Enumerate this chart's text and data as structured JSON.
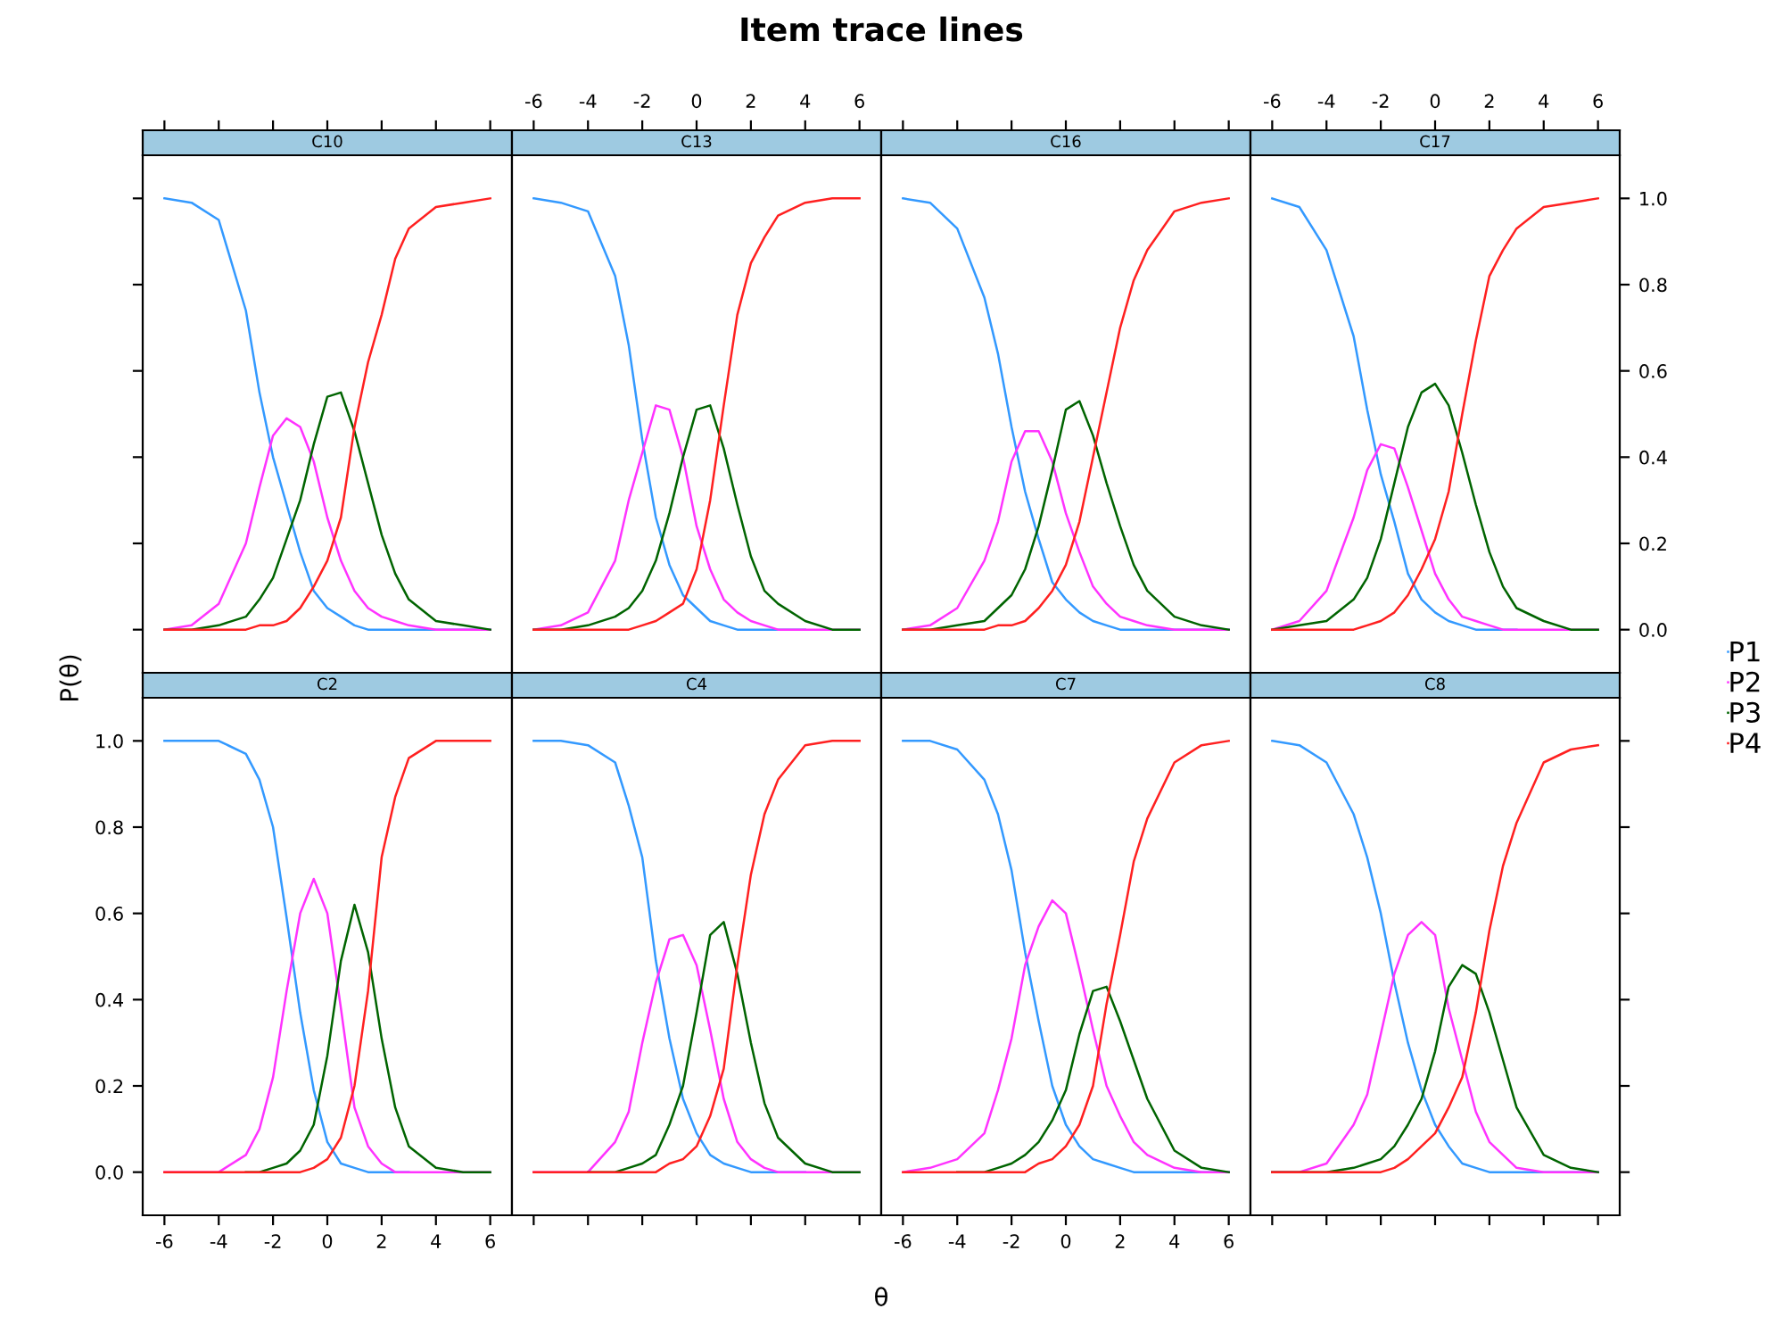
{
  "chart_data": [
    {
      "type": "line",
      "title": "C10",
      "annotations": [
        "Item trace lines",
        "θ",
        "P(θ)"
      ],
      "legend": "right",
      "tick_labels": false,
      "x": [
        -6,
        -5,
        -4,
        -3,
        -2.5,
        -2,
        -1.5,
        -1,
        -0.5,
        0,
        0.5,
        1,
        1.5,
        2,
        2.5,
        3,
        4,
        5,
        6
      ],
      "xlim": [
        -6.8,
        6.8
      ],
      "ylim": [
        -0.1,
        1.1
      ],
      "xticks": [
        -6,
        -4,
        -2,
        0,
        2,
        4,
        6
      ],
      "yticks": [
        0,
        0.2,
        0.4,
        0.6,
        0.8,
        1
      ],
      "series": [
        {
          "name": "P1",
          "color": "#3399ff",
          "values": [
            1.0,
            0.99,
            0.95,
            0.74,
            0.55,
            0.4,
            0.29,
            0.18,
            0.09,
            0.05,
            0.03,
            0.01,
            0,
            0,
            0,
            0,
            0,
            0,
            0
          ]
        },
        {
          "name": "P2",
          "color": "#ff33ff",
          "values": [
            0,
            0.01,
            0.06,
            0.2,
            0.33,
            0.45,
            0.49,
            0.47,
            0.39,
            0.26,
            0.16,
            0.09,
            0.05,
            0.03,
            0.02,
            0.01,
            0,
            0,
            0
          ]
        },
        {
          "name": "P3",
          "color": "#006400",
          "values": [
            0,
            0,
            0.01,
            0.03,
            0.07,
            0.12,
            0.21,
            0.3,
            0.43,
            0.54,
            0.55,
            0.46,
            0.34,
            0.22,
            0.13,
            0.07,
            0.02,
            0.01,
            0
          ]
        },
        {
          "name": "P4",
          "color": "#ff2020",
          "values": [
            0,
            0,
            0,
            0,
            0.01,
            0.01,
            0.02,
            0.05,
            0.1,
            0.16,
            0.26,
            0.47,
            0.62,
            0.73,
            0.86,
            0.93,
            0.98,
            0.99,
            1.0
          ]
        }
      ]
    },
    {
      "type": "line",
      "title": "C13",
      "tick_labels": "x",
      "x": [
        -6,
        -5,
        -4,
        -3,
        -2.5,
        -2,
        -1.5,
        -1,
        -0.5,
        0,
        0.5,
        1,
        1.5,
        2,
        2.5,
        3,
        4,
        5,
        6
      ],
      "xlim": [
        -6.8,
        6.8
      ],
      "ylim": [
        -0.1,
        1.1
      ],
      "xticks": [
        -6,
        -4,
        -2,
        0,
        2,
        4,
        6
      ],
      "yticks": [
        0,
        0.2,
        0.4,
        0.6,
        0.8,
        1
      ],
      "series": [
        {
          "color": "#3399ff",
          "values": [
            1.0,
            0.99,
            0.97,
            0.82,
            0.66,
            0.44,
            0.26,
            0.15,
            0.08,
            0.05,
            0.02,
            0.01,
            0,
            0,
            0,
            0,
            0,
            null,
            null
          ]
        },
        {
          "color": "#ff33ff",
          "values": [
            0,
            0.01,
            0.04,
            0.16,
            0.3,
            0.41,
            0.52,
            0.51,
            0.4,
            0.24,
            0.14,
            0.07,
            0.04,
            0.02,
            0.01,
            0,
            0,
            0,
            0
          ]
        },
        {
          "color": "#006400",
          "values": [
            0,
            0,
            0.01,
            0.03,
            0.05,
            0.09,
            0.16,
            0.27,
            0.4,
            0.51,
            0.52,
            0.42,
            0.29,
            0.17,
            0.09,
            0.06,
            0.02,
            0,
            0
          ]
        },
        {
          "color": "#ff2020",
          "values": [
            0,
            0,
            0,
            0,
            0,
            0.01,
            0.02,
            0.04,
            0.06,
            0.14,
            0.3,
            0.52,
            0.73,
            0.85,
            0.91,
            0.96,
            0.99,
            1.0,
            1.0
          ]
        }
      ]
    },
    {
      "type": "line",
      "title": "C16",
      "tick_labels": false,
      "x": [
        -6,
        -5,
        -4,
        -3,
        -2.5,
        -2,
        -1.5,
        -1,
        -0.5,
        0,
        0.5,
        1,
        1.5,
        2,
        2.5,
        3,
        4,
        5,
        6
      ],
      "xlim": [
        -6.8,
        6.8
      ],
      "ylim": [
        -0.1,
        1.1
      ],
      "xticks": [
        -6,
        -4,
        -2,
        0,
        2,
        4,
        6
      ],
      "yticks": [
        0,
        0.2,
        0.4,
        0.6,
        0.8,
        1
      ],
      "series": [
        {
          "color": "#3399ff",
          "values": [
            1.0,
            0.99,
            0.93,
            0.77,
            0.64,
            0.47,
            0.32,
            0.21,
            0.11,
            0.07,
            0.04,
            0.02,
            0.01,
            0,
            0,
            0,
            0,
            0,
            0
          ]
        },
        {
          "color": "#ff33ff",
          "values": [
            0,
            0.01,
            0.05,
            0.16,
            0.25,
            0.39,
            0.46,
            0.46,
            0.39,
            0.27,
            0.18,
            0.1,
            0.06,
            0.03,
            0.02,
            0.01,
            0,
            0,
            0
          ]
        },
        {
          "color": "#006400",
          "values": [
            0,
            0,
            0.01,
            0.02,
            0.05,
            0.08,
            0.14,
            0.24,
            0.37,
            0.51,
            0.53,
            0.45,
            0.34,
            0.24,
            0.15,
            0.09,
            0.03,
            0.01,
            0
          ]
        },
        {
          "color": "#ff2020",
          "values": [
            0,
            0,
            0,
            0,
            0.01,
            0.01,
            0.02,
            0.05,
            0.09,
            0.15,
            0.25,
            0.4,
            0.55,
            0.7,
            0.81,
            0.88,
            0.97,
            0.99,
            1.0
          ]
        }
      ]
    },
    {
      "type": "line",
      "title": "C17",
      "tick_labels": "xy",
      "x": [
        -6,
        -5,
        -4,
        -3,
        -2.5,
        -2,
        -1.5,
        -1,
        -0.5,
        0,
        0.5,
        1,
        1.5,
        2,
        2.5,
        3,
        4,
        5,
        6
      ],
      "xlim": [
        -6.8,
        6.8
      ],
      "ylim": [
        -0.1,
        1.1
      ],
      "xticks": [
        -6,
        -4,
        -2,
        0,
        2,
        4,
        6
      ],
      "yticks": [
        {
          "value": 0,
          "label": "0.0"
        },
        {
          "value": 0.2,
          "label": "0.2"
        },
        {
          "value": 0.4,
          "label": "0.4"
        },
        {
          "value": 0.6,
          "label": "0.6"
        },
        {
          "value": 0.8,
          "label": "0.8"
        },
        {
          "value": 1,
          "label": "1.0"
        }
      ],
      "series": [
        {
          "color": "#3399ff",
          "values": [
            1.0,
            0.98,
            0.88,
            0.68,
            0.51,
            0.36,
            0.25,
            0.13,
            0.07,
            0.04,
            0.02,
            0.01,
            0,
            0,
            0,
            0,
            null,
            null,
            null
          ]
        },
        {
          "color": "#ff33ff",
          "values": [
            0,
            0.02,
            0.09,
            0.26,
            0.37,
            0.43,
            0.42,
            0.33,
            0.23,
            0.13,
            0.07,
            0.03,
            0.02,
            0.01,
            0,
            0,
            0,
            0,
            0
          ]
        },
        {
          "color": "#006400",
          "values": [
            0,
            0.01,
            0.02,
            0.07,
            0.12,
            0.21,
            0.34,
            0.47,
            0.55,
            0.57,
            0.52,
            0.41,
            0.29,
            0.18,
            0.1,
            0.05,
            0.02,
            0,
            0
          ]
        },
        {
          "color": "#ff2020",
          "values": [
            0,
            0,
            0,
            0,
            0.01,
            0.02,
            0.04,
            0.08,
            0.14,
            0.21,
            0.32,
            0.5,
            0.67,
            0.82,
            0.88,
            0.93,
            0.98,
            0.99,
            1.0
          ]
        }
      ]
    },
    {
      "type": "line",
      "title": "C2",
      "tick_labels": "xy",
      "x": [
        -6,
        -5,
        -4,
        -3,
        -2.5,
        -2,
        -1.5,
        -1,
        -0.5,
        0,
        0.5,
        1,
        1.5,
        2,
        2.5,
        3,
        4,
        5,
        6
      ],
      "xlim": [
        -6.8,
        6.8
      ],
      "ylim": [
        -0.1,
        1.1
      ],
      "xticks": [
        -6,
        -4,
        -2,
        0,
        2,
        4,
        6
      ],
      "yticks": [
        {
          "value": 0,
          "label": "0.0"
        },
        {
          "value": 0.2,
          "label": "0.2"
        },
        {
          "value": 0.4,
          "label": "0.4"
        },
        {
          "value": 0.6,
          "label": "0.6"
        },
        {
          "value": 0.8,
          "label": "0.8"
        },
        {
          "value": 1,
          "label": "1.0"
        }
      ],
      "series": [
        {
          "color": "#3399ff",
          "values": [
            1.0,
            1.0,
            1.0,
            0.97,
            0.91,
            0.8,
            0.59,
            0.37,
            0.19,
            0.07,
            0.02,
            0.01,
            0,
            0,
            0,
            0,
            null,
            null,
            null
          ]
        },
        {
          "color": "#ff33ff",
          "values": [
            0,
            0,
            0,
            0.04,
            0.1,
            0.22,
            0.42,
            0.6,
            0.68,
            0.6,
            0.38,
            0.15,
            0.06,
            0.02,
            0,
            0,
            0,
            0,
            0
          ]
        },
        {
          "color": "#006400",
          "values": [
            null,
            null,
            null,
            0,
            0,
            0.01,
            0.02,
            0.05,
            0.11,
            0.27,
            0.49,
            0.62,
            0.51,
            0.31,
            0.15,
            0.06,
            0.01,
            0,
            0
          ]
        },
        {
          "color": "#ff2020",
          "values": [
            0,
            0,
            0,
            0,
            0,
            0,
            0,
            0,
            0.01,
            0.03,
            0.08,
            0.2,
            0.42,
            0.73,
            0.87,
            0.96,
            1.0,
            1.0,
            1.0
          ]
        }
      ]
    },
    {
      "type": "line",
      "title": "C4",
      "tick_labels": false,
      "x": [
        -6,
        -5,
        -4,
        -3,
        -2.5,
        -2,
        -1.5,
        -1,
        -0.5,
        0,
        0.5,
        1,
        1.5,
        2,
        2.5,
        3,
        4,
        5,
        6
      ],
      "xlim": [
        -6.8,
        6.8
      ],
      "ylim": [
        -0.1,
        1.1
      ],
      "xticks": [
        -6,
        -4,
        -2,
        0,
        2,
        4,
        6
      ],
      "yticks": [
        0,
        0.2,
        0.4,
        0.6,
        0.8,
        1
      ],
      "series": [
        {
          "color": "#3399ff",
          "values": [
            1.0,
            1.0,
            0.99,
            0.95,
            0.85,
            0.73,
            0.49,
            0.31,
            0.17,
            0.09,
            0.04,
            0.02,
            0.01,
            0,
            0,
            0,
            0,
            null,
            null
          ]
        },
        {
          "color": "#ff33ff",
          "values": [
            0,
            0,
            0,
            0.07,
            0.14,
            0.3,
            0.44,
            0.54,
            0.55,
            0.48,
            0.33,
            0.17,
            0.07,
            0.03,
            0.01,
            0,
            0,
            0,
            0
          ]
        },
        {
          "color": "#006400",
          "values": [
            null,
            null,
            0,
            0,
            0.01,
            0.02,
            0.04,
            0.11,
            0.2,
            0.37,
            0.55,
            0.58,
            0.46,
            0.3,
            0.16,
            0.08,
            0.02,
            0,
            0
          ]
        },
        {
          "color": "#ff2020",
          "values": [
            0,
            0,
            0,
            0,
            0,
            0,
            0,
            0.02,
            0.03,
            0.06,
            0.13,
            0.24,
            0.48,
            0.69,
            0.83,
            0.91,
            0.99,
            1.0,
            1.0
          ]
        }
      ]
    },
    {
      "type": "line",
      "title": "C7",
      "tick_labels": "x",
      "x": [
        -6,
        -5,
        -4,
        -3,
        -2.5,
        -2,
        -1.5,
        -1,
        -0.5,
        0,
        0.5,
        1,
        1.5,
        2,
        2.5,
        3,
        4,
        5,
        6
      ],
      "xlim": [
        -6.8,
        6.8
      ],
      "ylim": [
        -0.1,
        1.1
      ],
      "xticks": [
        -6,
        -4,
        -2,
        0,
        2,
        4,
        6
      ],
      "yticks": [
        0,
        0.2,
        0.4,
        0.6,
        0.8,
        1
      ],
      "series": [
        {
          "color": "#3399ff",
          "values": [
            1.0,
            1.0,
            0.98,
            0.91,
            0.83,
            0.7,
            0.51,
            0.35,
            0.2,
            0.11,
            0.06,
            0.03,
            0.02,
            0.01,
            0,
            0,
            0,
            0,
            0
          ]
        },
        {
          "color": "#ff33ff",
          "values": [
            0,
            0.01,
            0.03,
            0.09,
            0.19,
            0.31,
            0.48,
            0.57,
            0.63,
            0.6,
            0.47,
            0.33,
            0.2,
            0.13,
            0.07,
            0.04,
            0.01,
            0,
            0
          ]
        },
        {
          "color": "#006400",
          "values": [
            null,
            null,
            0,
            0,
            0.01,
            0.02,
            0.04,
            0.07,
            0.12,
            0.19,
            0.32,
            0.42,
            0.43,
            0.35,
            0.26,
            0.17,
            0.05,
            0.01,
            0
          ]
        },
        {
          "color": "#ff2020",
          "values": [
            0,
            0,
            0,
            0,
            0,
            0,
            0,
            0.02,
            0.03,
            0.06,
            0.11,
            0.2,
            0.39,
            0.55,
            0.72,
            0.82,
            0.95,
            0.99,
            1.0
          ]
        }
      ]
    },
    {
      "type": "line",
      "title": "C8",
      "tick_labels": false,
      "x": [
        -6,
        -5,
        -4,
        -3,
        -2.5,
        -2,
        -1.5,
        -1,
        -0.5,
        0,
        0.5,
        1,
        1.5,
        2,
        2.5,
        3,
        4,
        5,
        6
      ],
      "xlim": [
        -6.8,
        6.8
      ],
      "ylim": [
        -0.1,
        1.1
      ],
      "xticks": [
        -6,
        -4,
        -2,
        0,
        2,
        4,
        6
      ],
      "yticks": [
        0,
        0.2,
        0.4,
        0.6,
        0.8,
        1
      ],
      "series": [
        {
          "color": "#3399ff",
          "values": [
            1.0,
            0.99,
            0.95,
            0.83,
            0.73,
            0.6,
            0.44,
            0.3,
            0.19,
            0.11,
            0.06,
            0.02,
            0.01,
            0,
            0,
            0,
            0,
            0,
            0
          ]
        },
        {
          "color": "#ff33ff",
          "values": [
            0,
            0,
            0.02,
            0.11,
            0.18,
            0.32,
            0.46,
            0.55,
            0.58,
            0.55,
            0.38,
            0.26,
            0.14,
            0.07,
            0.04,
            0.01,
            0,
            0,
            0
          ]
        },
        {
          "color": "#006400",
          "values": [
            0,
            0,
            0,
            0.01,
            0.02,
            0.03,
            0.06,
            0.11,
            0.17,
            0.28,
            0.43,
            0.48,
            0.46,
            0.37,
            0.26,
            0.15,
            0.04,
            0.01,
            0
          ]
        },
        {
          "color": "#ff2020",
          "values": [
            0,
            0,
            0,
            0,
            0,
            0,
            0.01,
            0.03,
            0.06,
            0.09,
            0.15,
            0.22,
            0.37,
            0.56,
            0.71,
            0.81,
            0.95,
            0.98,
            0.99
          ]
        }
      ]
    }
  ]
}
